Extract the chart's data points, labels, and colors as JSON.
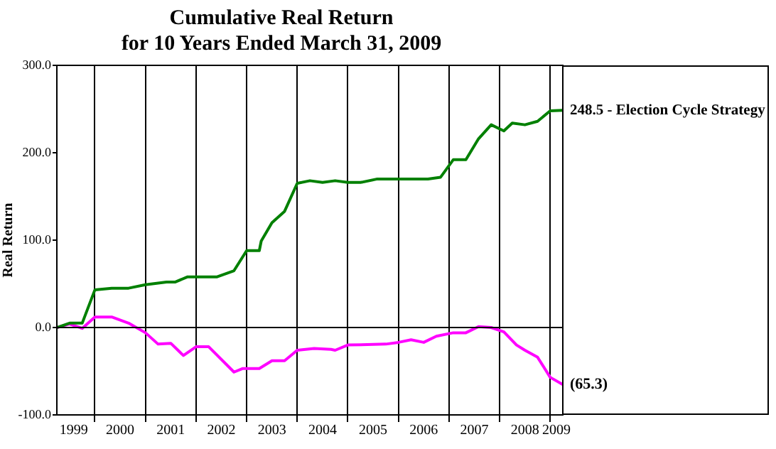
{
  "chart_data": {
    "type": "line",
    "title": [
      "Cumulative Real Return",
      "for 10 Years Ended March 31, 2009"
    ],
    "ylabel": "Real Return",
    "xlim": [
      "1999-03-31",
      "2009-03-31"
    ],
    "xticks": [
      {
        "value": "1999-08",
        "label": "1999"
      },
      {
        "value": "2000-01",
        "label": null
      },
      {
        "value": "2000-07",
        "label": "2000"
      },
      {
        "value": "2001-01",
        "label": null
      },
      {
        "value": "2001-07",
        "label": "2001"
      },
      {
        "value": "2002-01",
        "label": null
      },
      {
        "value": "2002-07",
        "label": "2002"
      },
      {
        "value": "2003-01",
        "label": null
      },
      {
        "value": "2003-07",
        "label": "2003"
      },
      {
        "value": "2004-01",
        "label": null
      },
      {
        "value": "2004-07",
        "label": "2004"
      },
      {
        "value": "2005-01",
        "label": null
      },
      {
        "value": "2005-07",
        "label": "2005"
      },
      {
        "value": "2006-01",
        "label": null
      },
      {
        "value": "2006-07",
        "label": "2006"
      },
      {
        "value": "2007-01",
        "label": null
      },
      {
        "value": "2007-07",
        "label": "2007"
      },
      {
        "value": "2008-01",
        "label": null
      },
      {
        "value": "2008-07",
        "label": "2008"
      },
      {
        "value": "2009-01",
        "label": null
      },
      {
        "value": "2009-02-15",
        "label": "2009"
      }
    ],
    "ylim": [
      -100,
      300
    ],
    "yticks": [
      {
        "value": -100,
        "label": "-100.0"
      },
      {
        "value": 0,
        "label": "0.0"
      },
      {
        "value": 100,
        "label": "100.0"
      },
      {
        "value": 200,
        "label": "200.0"
      },
      {
        "value": 300,
        "label": "300.0"
      }
    ],
    "grid": "x",
    "legend": false,
    "marker": "none",
    "line_style": "solid",
    "ref_lines": [
      {
        "axis": "y",
        "value": 0,
        "color": "#000000"
      }
    ],
    "series": [
      {
        "color": "#008000",
        "x": [
          "1999-03-31",
          "1999-07",
          "1999-10",
          "2000-01",
          "2000-05",
          "2000-09",
          "2001-01",
          "2001-06",
          "2001-08",
          "2001-11",
          "2002-06",
          "2002-10",
          "2003-01",
          "2003-04-01",
          "2003-04-15",
          "2003-07",
          "2003-10",
          "2004-01",
          "2004-04",
          "2004-07",
          "2004-10",
          "2005-01",
          "2005-04",
          "2005-08",
          "2006-08",
          "2006-11",
          "2007-02",
          "2007-05",
          "2007-08",
          "2007-11",
          "2008-02",
          "2008-04",
          "2008-07",
          "2008-10",
          "2009-01",
          "2009-03-31"
        ],
        "values": [
          0,
          5,
          5,
          43,
          45,
          45,
          49,
          52,
          52,
          58,
          58,
          65,
          88,
          88,
          99,
          120,
          133,
          165,
          168,
          166,
          168,
          166,
          166,
          170,
          170,
          172,
          192,
          192,
          216,
          232,
          225,
          234,
          232,
          236,
          248,
          248.5
        ]
      },
      {
        "color": "#ff00ff",
        "x": [
          "1999-03-31",
          "1999-07",
          "1999-10",
          "2000-01",
          "2000-05",
          "2000-09",
          "2001-01",
          "2001-04",
          "2001-07",
          "2001-10",
          "2002-01",
          "2002-04",
          "2002-10",
          "2002-12",
          "2003-04",
          "2003-07",
          "2003-10",
          "2004-01",
          "2004-05",
          "2004-09",
          "2004-10",
          "2005-01",
          "2005-10",
          "2006-01",
          "2006-04",
          "2006-07",
          "2006-10",
          "2007-02",
          "2007-05",
          "2007-08",
          "2007-11",
          "2008-02",
          "2008-05",
          "2008-07",
          "2008-10",
          "2009-01",
          "2009-03-31"
        ],
        "values": [
          0,
          4,
          -1,
          12,
          12,
          5,
          -6,
          -19,
          -18,
          -32,
          -22,
          -22,
          -51,
          -47,
          -47,
          -38,
          -38,
          -26,
          -24,
          -25,
          -26,
          -20,
          -19,
          -17,
          -14,
          -17,
          -10,
          -6,
          -6,
          1,
          0,
          -5,
          -20,
          -26,
          -34,
          -57,
          -65.3
        ]
      }
    ],
    "annotations": [
      {
        "text": "248.5 - Election Cycle Strategy",
        "x": "2009-03-31",
        "y": 248.5
      },
      {
        "text": "(65.3)",
        "x": "2009-03-31",
        "y": -65.3
      }
    ]
  }
}
